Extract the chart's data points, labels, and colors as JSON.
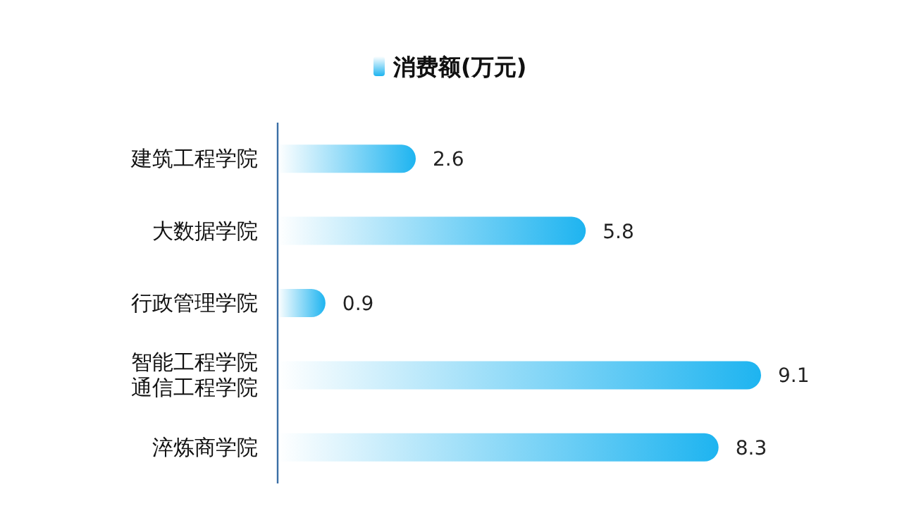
{
  "chart_data": {
    "type": "bar",
    "orientation": "horizontal",
    "categories": [
      "建筑工程学院",
      "大数据学院",
      "行政管理学院",
      "智能工程学院通信工程学院",
      "淬炼商学院"
    ],
    "series": [
      {
        "name": "消费额(万元)",
        "color": "#1eb4f0",
        "values": [
          2.6,
          5.8,
          0.9,
          9.1,
          8.3
        ]
      }
    ],
    "data_labels": true,
    "legend": "top"
  }
}
